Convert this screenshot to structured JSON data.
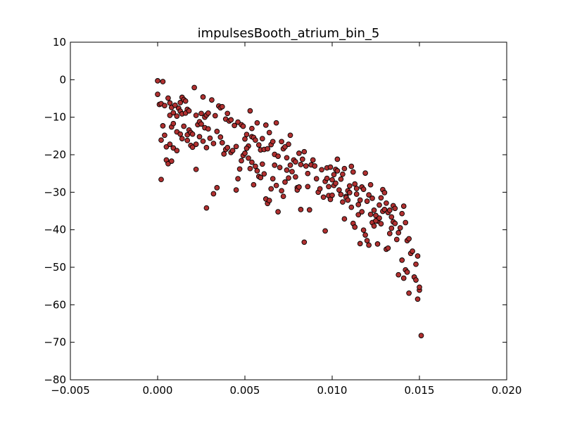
{
  "chart_data": {
    "type": "scatter",
    "title": "impulsesBooth_atrium_bin_5",
    "xlabel": "",
    "ylabel": "",
    "xlim": [
      -0.005,
      0.02
    ],
    "ylim": [
      -80,
      10
    ],
    "x_ticks": [
      -0.005,
      0.0,
      0.005,
      0.01,
      0.015,
      0.02
    ],
    "x_tick_labels": [
      "−0.005",
      "0.000",
      "0.005",
      "0.010",
      "0.015",
      "0.020"
    ],
    "y_ticks": [
      10,
      0,
      -10,
      -20,
      -30,
      -40,
      -50,
      -60,
      -70,
      -80
    ],
    "y_tick_labels": [
      "10",
      "0",
      "−10",
      "−20",
      "−30",
      "−40",
      "−50",
      "−60",
      "−70",
      "−80"
    ],
    "grid": false,
    "marker_fill": "#b03030",
    "marker_edge": "#000000",
    "series": [
      {
        "points": [
          [
            0.0,
            -0.3
          ],
          [
            0.0003,
            -0.5
          ],
          [
            0.0,
            -3.9
          ],
          [
            0.0001,
            -6.6
          ],
          [
            0.0002,
            -6.4
          ],
          [
            0.0004,
            -6.9
          ],
          [
            0.0006,
            -4.9
          ],
          [
            0.0007,
            -6.2
          ],
          [
            0.0008,
            -7.4
          ],
          [
            0.001,
            -6.8
          ],
          [
            0.0012,
            -7.6
          ],
          [
            0.0013,
            -6.1
          ],
          [
            0.0014,
            -4.7
          ],
          [
            0.0015,
            -5.3
          ],
          [
            0.0016,
            -5.7
          ],
          [
            0.0017,
            -7.9
          ],
          [
            0.0007,
            -9.5
          ],
          [
            0.0009,
            -8.8
          ],
          [
            0.0011,
            -9.7
          ],
          [
            0.0013,
            -8.4
          ],
          [
            0.0014,
            -9.1
          ],
          [
            0.0016,
            -8.9
          ],
          [
            0.0018,
            -8.3
          ],
          [
            0.0021,
            -2.1
          ],
          [
            0.0022,
            -9.5
          ],
          [
            0.0025,
            -9.0
          ],
          [
            0.0026,
            -4.6
          ],
          [
            0.0027,
            -10.0
          ],
          [
            0.0028,
            -9.4
          ],
          [
            0.0029,
            -8.9
          ],
          [
            0.0031,
            -5.4
          ],
          [
            0.0033,
            -9.6
          ],
          [
            0.0003,
            -12.3
          ],
          [
            0.0004,
            -14.8
          ],
          [
            0.0008,
            -12.6
          ],
          [
            0.0009,
            -11.7
          ],
          [
            0.0011,
            -13.9
          ],
          [
            0.0013,
            -14.5
          ],
          [
            0.0015,
            -12.4
          ],
          [
            0.0017,
            -14.7
          ],
          [
            0.0018,
            -13.4
          ],
          [
            0.0019,
            -14.1
          ],
          [
            0.002,
            -14.5
          ],
          [
            0.0023,
            -12.0
          ],
          [
            0.0024,
            -11.2
          ],
          [
            0.0025,
            -11.8
          ],
          [
            0.0027,
            -12.8
          ],
          [
            0.0029,
            -13.1
          ],
          [
            0.0002,
            -16.1
          ],
          [
            0.0005,
            -17.9
          ],
          [
            0.0007,
            -17.2
          ],
          [
            0.0009,
            -18.2
          ],
          [
            0.0011,
            -18.9
          ],
          [
            0.0014,
            -15.7
          ],
          [
            0.0017,
            -16.2
          ],
          [
            0.0019,
            -17.5
          ],
          [
            0.002,
            -18.0
          ],
          [
            0.0022,
            -17.2
          ],
          [
            0.0024,
            -15.2
          ],
          [
            0.0026,
            -16.4
          ],
          [
            0.0028,
            -18.1
          ],
          [
            0.003,
            -15.6
          ],
          [
            0.0032,
            -17.0
          ],
          [
            0.0034,
            -13.8
          ],
          [
            0.0002,
            -26.6
          ],
          [
            0.0005,
            -21.4
          ],
          [
            0.0006,
            -22.4
          ],
          [
            0.0008,
            -21.7
          ],
          [
            0.0022,
            -23.9
          ],
          [
            0.0028,
            -34.2
          ],
          [
            0.0032,
            -30.4
          ],
          [
            0.0034,
            -28.8
          ],
          [
            0.0035,
            -7.0
          ],
          [
            0.0036,
            -7.5
          ],
          [
            0.0037,
            -7.2
          ],
          [
            0.0039,
            -10.5
          ],
          [
            0.004,
            -9.0
          ],
          [
            0.0041,
            -11.0
          ],
          [
            0.0042,
            -10.7
          ],
          [
            0.0044,
            -12.2
          ],
          [
            0.0036,
            -15.3
          ],
          [
            0.0037,
            -16.8
          ],
          [
            0.0038,
            -19.8
          ],
          [
            0.0039,
            -18.6
          ],
          [
            0.004,
            -18.1
          ],
          [
            0.0042,
            -19.4
          ],
          [
            0.0043,
            -18.9
          ],
          [
            0.0045,
            -17.8
          ],
          [
            0.0046,
            -11.3
          ],
          [
            0.0048,
            -12.0
          ],
          [
            0.0049,
            -12.4
          ],
          [
            0.005,
            -15.8
          ],
          [
            0.0051,
            -14.6
          ],
          [
            0.0052,
            -17.7
          ],
          [
            0.0053,
            -8.3
          ],
          [
            0.0054,
            -13.0
          ],
          [
            0.0045,
            -29.4
          ],
          [
            0.0046,
            -26.4
          ],
          [
            0.0047,
            -23.8
          ],
          [
            0.0048,
            -21.6
          ],
          [
            0.0049,
            -20.2
          ],
          [
            0.005,
            -19.6
          ],
          [
            0.0051,
            -18.3
          ],
          [
            0.0052,
            -20.9
          ],
          [
            0.0054,
            -15.2
          ],
          [
            0.0055,
            -15.4
          ],
          [
            0.0056,
            -16.1
          ],
          [
            0.0057,
            -11.5
          ],
          [
            0.0058,
            -17.4
          ],
          [
            0.0059,
            -18.7
          ],
          [
            0.006,
            -15.7
          ],
          [
            0.0061,
            -18.6
          ],
          [
            0.0053,
            -23.7
          ],
          [
            0.0054,
            -22.0
          ],
          [
            0.0055,
            -28.0
          ],
          [
            0.0056,
            -23.1
          ],
          [
            0.0057,
            -24.3
          ],
          [
            0.0058,
            -25.8
          ],
          [
            0.0059,
            -26.1
          ],
          [
            0.006,
            -22.5
          ],
          [
            0.0062,
            -12.1
          ],
          [
            0.0063,
            -18.4
          ],
          [
            0.0064,
            -14.1
          ],
          [
            0.0065,
            -17.3
          ],
          [
            0.0066,
            -16.5
          ],
          [
            0.0067,
            -19.9
          ],
          [
            0.0068,
            -11.5
          ],
          [
            0.0069,
            -20.4
          ],
          [
            0.0061,
            -25.1
          ],
          [
            0.0062,
            -31.8
          ],
          [
            0.0063,
            -33.0
          ],
          [
            0.0064,
            -32.2
          ],
          [
            0.0065,
            -29.1
          ],
          [
            0.0066,
            -26.4
          ],
          [
            0.0067,
            -22.8
          ],
          [
            0.0068,
            -28.2
          ],
          [
            0.0069,
            -35.2
          ],
          [
            0.007,
            -23.4
          ],
          [
            0.0071,
            -16.5
          ],
          [
            0.0072,
            -18.4
          ],
          [
            0.0073,
            -17.9
          ],
          [
            0.0074,
            -20.8
          ],
          [
            0.0075,
            -17.2
          ],
          [
            0.0076,
            -14.8
          ],
          [
            0.0071,
            -29.6
          ],
          [
            0.0072,
            -31.1
          ],
          [
            0.0073,
            -27.3
          ],
          [
            0.0074,
            -24.1
          ],
          [
            0.0075,
            -26.2
          ],
          [
            0.0076,
            -22.8
          ],
          [
            0.0077,
            -24.5
          ],
          [
            0.0078,
            -21.4
          ],
          [
            0.0079,
            -21.9
          ],
          [
            0.008,
            -28.8
          ],
          [
            0.0081,
            -19.6
          ],
          [
            0.0082,
            -22.6
          ],
          [
            0.0083,
            -21.2
          ],
          [
            0.0084,
            -19.2
          ],
          [
            0.0085,
            -23.0
          ],
          [
            0.0086,
            -25.0
          ],
          [
            0.0079,
            -25.9
          ],
          [
            0.008,
            -29.4
          ],
          [
            0.0081,
            -28.6
          ],
          [
            0.0082,
            -34.6
          ],
          [
            0.0084,
            -43.3
          ],
          [
            0.0086,
            -28.5
          ],
          [
            0.0087,
            -34.7
          ],
          [
            0.0088,
            -22.7
          ],
          [
            0.0089,
            -21.4
          ],
          [
            0.009,
            -23.0
          ],
          [
            0.0091,
            -26.4
          ],
          [
            0.0092,
            -30.0
          ],
          [
            0.0093,
            -29.1
          ],
          [
            0.0094,
            -24.0
          ],
          [
            0.0095,
            -31.3
          ],
          [
            0.0096,
            -27.1
          ],
          [
            0.0096,
            -40.3
          ],
          [
            0.0097,
            -23.5
          ],
          [
            0.0098,
            -30.9
          ],
          [
            0.0099,
            -23.3
          ],
          [
            0.01,
            -26.7
          ],
          [
            0.0101,
            -25.3
          ],
          [
            0.0102,
            -23.9
          ],
          [
            0.0103,
            -21.2
          ],
          [
            0.0097,
            -26.3
          ],
          [
            0.0098,
            -28.5
          ],
          [
            0.0099,
            -31.9
          ],
          [
            0.01,
            -30.8
          ],
          [
            0.0101,
            -28.2
          ],
          [
            0.0102,
            -27.6
          ],
          [
            0.0103,
            -24.3
          ],
          [
            0.0104,
            -29.4
          ],
          [
            0.0105,
            -30.6
          ],
          [
            0.0106,
            -32.6
          ],
          [
            0.0107,
            -37.1
          ],
          [
            0.0108,
            -31.1
          ],
          [
            0.0109,
            -29.6
          ],
          [
            0.011,
            -28.3
          ],
          [
            0.0111,
            -23.1
          ],
          [
            0.0112,
            -24.6
          ],
          [
            0.0105,
            -26.5
          ],
          [
            0.0106,
            -25.2
          ],
          [
            0.0107,
            -23.7
          ],
          [
            0.0108,
            -31.4
          ],
          [
            0.0109,
            -32.1
          ],
          [
            0.011,
            -30.1
          ],
          [
            0.0111,
            -34.0
          ],
          [
            0.0112,
            -38.3
          ],
          [
            0.0113,
            -27.8
          ],
          [
            0.0114,
            -29.0
          ],
          [
            0.0115,
            -36.0
          ],
          [
            0.0116,
            -43.7
          ],
          [
            0.0117,
            -28.6
          ],
          [
            0.0118,
            -29.2
          ],
          [
            0.0119,
            -24.9
          ],
          [
            0.012,
            -32.4
          ],
          [
            0.0113,
            -39.3
          ],
          [
            0.0114,
            -30.5
          ],
          [
            0.0115,
            -33.3
          ],
          [
            0.0116,
            -32.1
          ],
          [
            0.0117,
            -35.2
          ],
          [
            0.0118,
            -40.1
          ],
          [
            0.0119,
            -41.4
          ],
          [
            0.012,
            -42.9
          ],
          [
            0.0121,
            -30.7
          ],
          [
            0.0122,
            -28.0
          ],
          [
            0.0123,
            -31.6
          ],
          [
            0.0124,
            -34.8
          ],
          [
            0.0125,
            -36.2
          ],
          [
            0.0126,
            -37.7
          ],
          [
            0.0127,
            -33.4
          ],
          [
            0.0128,
            -31.5
          ],
          [
            0.0121,
            -44.1
          ],
          [
            0.0122,
            -35.9
          ],
          [
            0.0123,
            -38.1
          ],
          [
            0.0124,
            -39.0
          ],
          [
            0.0125,
            -37.6
          ],
          [
            0.0126,
            -43.8
          ],
          [
            0.0127,
            -36.9
          ],
          [
            0.0128,
            -38.4
          ],
          [
            0.0129,
            -35.1
          ],
          [
            0.013,
            -34.6
          ],
          [
            0.0131,
            -45.2
          ],
          [
            0.0132,
            -44.9
          ],
          [
            0.0133,
            -41.0
          ],
          [
            0.0134,
            -39.6
          ],
          [
            0.0135,
            -33.6
          ],
          [
            0.0136,
            -34.3
          ],
          [
            0.0129,
            -29.3
          ],
          [
            0.013,
            -30.1
          ],
          [
            0.0131,
            -32.9
          ],
          [
            0.0132,
            -35.4
          ],
          [
            0.0133,
            -34.8
          ],
          [
            0.0134,
            -36.6
          ],
          [
            0.0135,
            -37.9
          ],
          [
            0.0136,
            -38.3
          ],
          [
            0.0137,
            -42.6
          ],
          [
            0.0138,
            -40.8
          ],
          [
            0.0139,
            -39.5
          ],
          [
            0.014,
            -35.7
          ],
          [
            0.0141,
            -33.7
          ],
          [
            0.0142,
            -38.1
          ],
          [
            0.0143,
            -42.9
          ],
          [
            0.0144,
            -42.4
          ],
          [
            0.0138,
            -52.0
          ],
          [
            0.014,
            -48.1
          ],
          [
            0.0141,
            -52.9
          ],
          [
            0.0142,
            -50.7
          ],
          [
            0.0143,
            -51.3
          ],
          [
            0.0144,
            -56.9
          ],
          [
            0.0145,
            -46.3
          ],
          [
            0.0146,
            -45.7
          ],
          [
            0.0147,
            -52.6
          ],
          [
            0.0148,
            -53.4
          ],
          [
            0.0148,
            -49.2
          ],
          [
            0.0149,
            -47.0
          ],
          [
            0.0149,
            -58.5
          ],
          [
            0.015,
            -56.1
          ],
          [
            0.015,
            -55.3
          ],
          [
            0.0151,
            -68.2
          ]
        ]
      }
    ]
  }
}
